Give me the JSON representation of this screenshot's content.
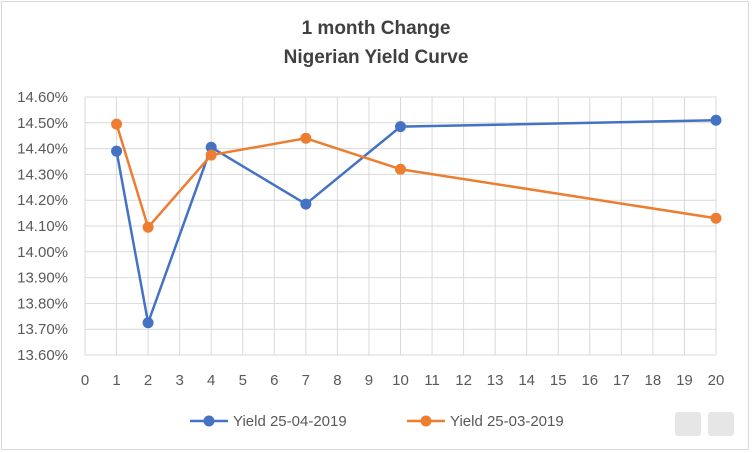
{
  "chart_data": {
    "type": "line",
    "title": "1 month Change",
    "subtitle": "Nigerian Yield Curve",
    "x_ticks": [
      "0",
      "1",
      "2",
      "3",
      "4",
      "5",
      "6",
      "7",
      "8",
      "9",
      "10",
      "11",
      "12",
      "13",
      "14",
      "15",
      "16",
      "17",
      "18",
      "19",
      "20"
    ],
    "y_ticks": [
      "14.60%",
      "14.50%",
      "14.40%",
      "14.30%",
      "14.20%",
      "14.10%",
      "14.00%",
      "13.90%",
      "13.80%",
      "13.70%",
      "13.60%"
    ],
    "ylim": [
      13.6,
      14.6
    ],
    "grid": true,
    "legend_position": "bottom",
    "series": [
      {
        "name": "Yield 25-04-2019",
        "color": "#4472c4",
        "x": [
          1,
          2,
          4,
          7,
          10,
          20
        ],
        "y": [
          14.39,
          13.725,
          14.405,
          14.185,
          14.485,
          14.51
        ]
      },
      {
        "name": "Yield 25-03-2019",
        "color": "#ed7d31",
        "x": [
          1,
          2,
          4,
          7,
          10,
          20
        ],
        "y": [
          14.495,
          14.095,
          14.375,
          14.44,
          14.32,
          14.13
        ]
      }
    ]
  }
}
